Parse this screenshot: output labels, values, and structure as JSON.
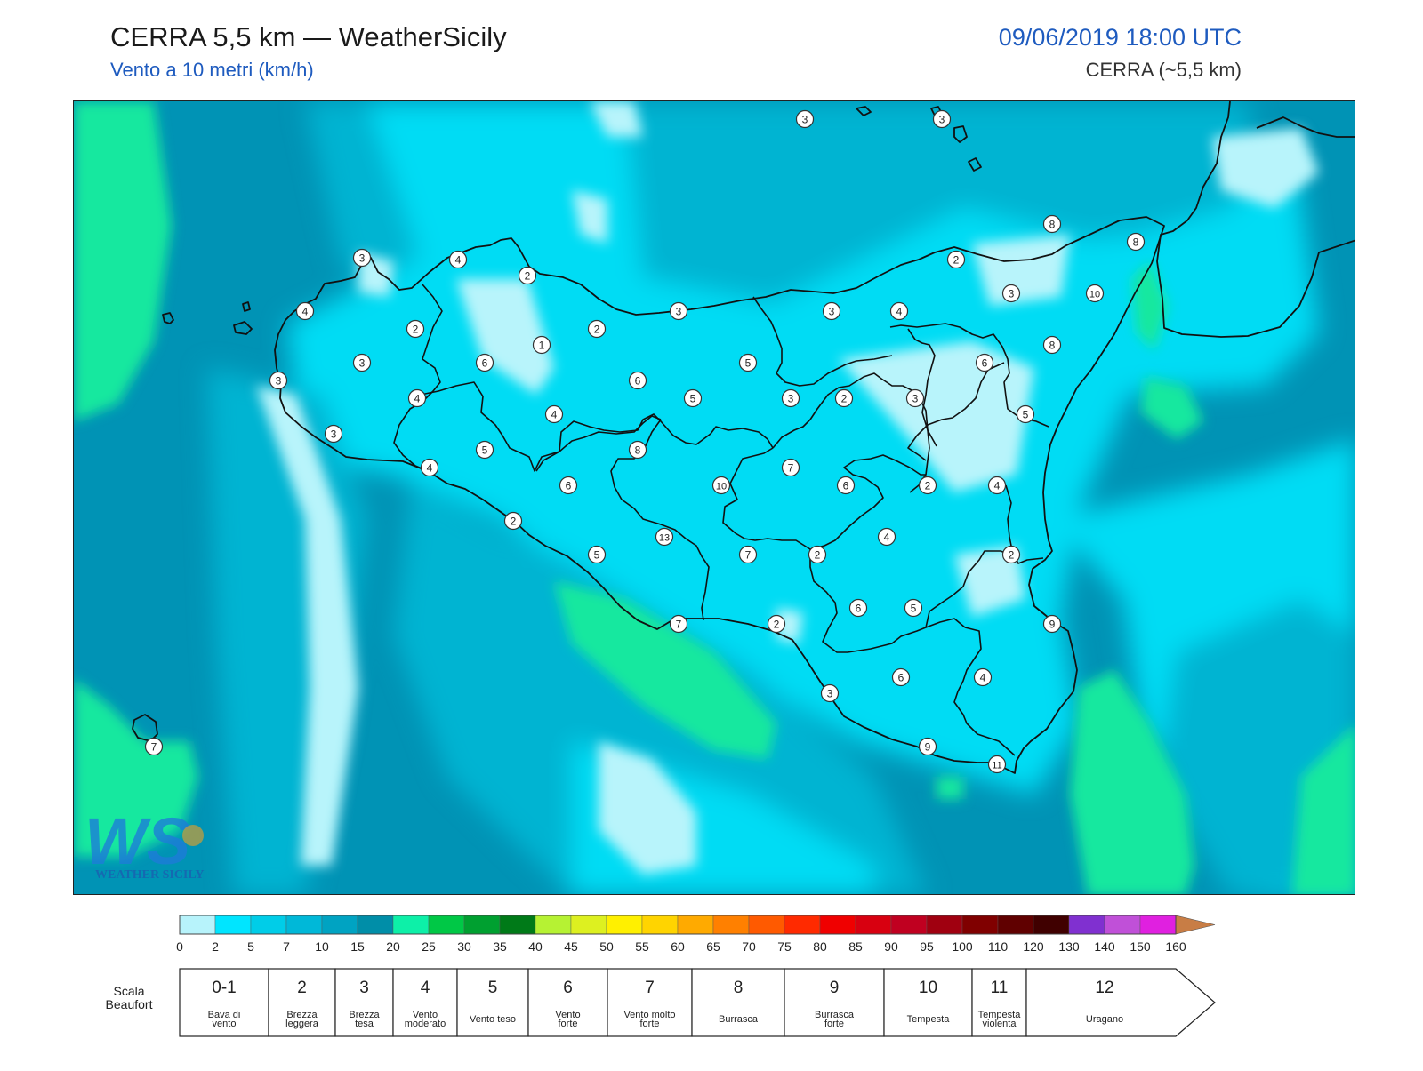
{
  "header": {
    "title": "CERRA 5,5 km — WeatherSicily",
    "subtitle": "Vento a 10 metri (km/h)",
    "datetime": "09/06/2019 18:00 UTC",
    "model": "CERRA (~5,5 km)"
  },
  "logo": {
    "text": "WEATHER SICILY",
    "letters": "WS"
  },
  "map": {
    "colors": {
      "sea_dark": "#0093b5",
      "mid": "#00b4d2",
      "bright": "#00dcf4",
      "pale": "#b8f4fb",
      "green": "#16e89f",
      "coast": "#111111"
    },
    "stations": [
      {
        "id": "s01",
        "value": "3"
      },
      {
        "id": "s02",
        "value": "3"
      },
      {
        "id": "s03",
        "value": "8"
      },
      {
        "id": "s04",
        "value": "8"
      },
      {
        "id": "s05",
        "value": "3"
      },
      {
        "id": "s06",
        "value": "4"
      },
      {
        "id": "s07",
        "value": "2"
      },
      {
        "id": "s08",
        "value": "2"
      },
      {
        "id": "s09",
        "value": "3"
      },
      {
        "id": "s10",
        "value": "10"
      },
      {
        "id": "s11",
        "value": "4"
      },
      {
        "id": "s12",
        "value": "3"
      },
      {
        "id": "s13",
        "value": "3"
      },
      {
        "id": "s14",
        "value": "1"
      },
      {
        "id": "s15",
        "value": "4"
      },
      {
        "id": "s16",
        "value": "2"
      },
      {
        "id": "s17",
        "value": "2"
      },
      {
        "id": "s18",
        "value": "8"
      },
      {
        "id": "s19",
        "value": "3"
      },
      {
        "id": "s20",
        "value": "6"
      },
      {
        "id": "s21",
        "value": "5"
      },
      {
        "id": "s22",
        "value": "6"
      },
      {
        "id": "s23",
        "value": "3"
      },
      {
        "id": "s24",
        "value": "4"
      },
      {
        "id": "s25",
        "value": "6"
      },
      {
        "id": "s26",
        "value": "5"
      },
      {
        "id": "s27",
        "value": "3"
      },
      {
        "id": "s28",
        "value": "2"
      },
      {
        "id": "s29",
        "value": "3"
      },
      {
        "id": "s30",
        "value": "5"
      },
      {
        "id": "s31",
        "value": "4"
      },
      {
        "id": "s32",
        "value": "3"
      },
      {
        "id": "s33",
        "value": "5"
      },
      {
        "id": "s34",
        "value": "8"
      },
      {
        "id": "s35",
        "value": "4"
      },
      {
        "id": "s36",
        "value": "7"
      },
      {
        "id": "s37",
        "value": "6"
      },
      {
        "id": "s38",
        "value": "10"
      },
      {
        "id": "s39",
        "value": "6"
      },
      {
        "id": "s40",
        "value": "2"
      },
      {
        "id": "s41",
        "value": "4"
      },
      {
        "id": "s42",
        "value": "2"
      },
      {
        "id": "s43",
        "value": "13"
      },
      {
        "id": "s44",
        "value": "4"
      },
      {
        "id": "s45",
        "value": "5"
      },
      {
        "id": "s46",
        "value": "7"
      },
      {
        "id": "s47",
        "value": "2"
      },
      {
        "id": "s48",
        "value": "2"
      },
      {
        "id": "s49",
        "value": "6"
      },
      {
        "id": "s50",
        "value": "5"
      },
      {
        "id": "s51",
        "value": "9"
      },
      {
        "id": "s52",
        "value": "7"
      },
      {
        "id": "s53",
        "value": "2"
      },
      {
        "id": "s54",
        "value": "3"
      },
      {
        "id": "s55",
        "value": "6"
      },
      {
        "id": "s56",
        "value": "4"
      },
      {
        "id": "s57",
        "value": "9"
      },
      {
        "id": "s58",
        "value": "11"
      },
      {
        "id": "s59",
        "value": "7"
      }
    ]
  },
  "colorbar": {
    "colors": [
      "#b7f3fb",
      "#00e5ff",
      "#00cde8",
      "#00b8d8",
      "#00a3c2",
      "#008ea8",
      "#0df0a8",
      "#00c846",
      "#00a030",
      "#007a18",
      "#b6f233",
      "#ddf020",
      "#fff000",
      "#ffd400",
      "#ffaa00",
      "#ff8000",
      "#ff5a00",
      "#ff2a00",
      "#f00000",
      "#d80010",
      "#c00020",
      "#a00010",
      "#800000",
      "#600000",
      "#400000",
      "#8030d0",
      "#c050d8",
      "#e020e0",
      "#ff20ff",
      "#909090",
      "#606060",
      "#101010",
      "#8b4a28",
      "#c87d45"
    ],
    "ticks": [
      "0",
      "2",
      "5",
      "7",
      "10",
      "15",
      "20",
      "25",
      "30",
      "35",
      "40",
      "45",
      "50",
      "55",
      "60",
      "65",
      "70",
      "75",
      "80",
      "85",
      "90",
      "95",
      "100",
      "110",
      "120",
      "130",
      "140",
      "150",
      "160"
    ]
  },
  "beaufort": {
    "label_line1": "Scala",
    "label_line2": "Beaufort",
    "items": [
      {
        "num": "0-1",
        "desc": [
          "Bava di",
          "vento"
        ]
      },
      {
        "num": "2",
        "desc": [
          "Brezza",
          "leggera"
        ]
      },
      {
        "num": "3",
        "desc": [
          "Brezza",
          "tesa"
        ]
      },
      {
        "num": "4",
        "desc": [
          "Vento",
          "moderato"
        ]
      },
      {
        "num": "5",
        "desc": [
          "Vento teso"
        ]
      },
      {
        "num": "6",
        "desc": [
          "Vento",
          "forte"
        ]
      },
      {
        "num": "7",
        "desc": [
          "Vento molto",
          "forte"
        ]
      },
      {
        "num": "8",
        "desc": [
          "Burrasca"
        ]
      },
      {
        "num": "9",
        "desc": [
          "Burrasca",
          "forte"
        ]
      },
      {
        "num": "10",
        "desc": [
          "Tempesta"
        ]
      },
      {
        "num": "11",
        "desc": [
          "Tempesta",
          "violenta"
        ]
      },
      {
        "num": "12",
        "desc": [
          "Uragano"
        ]
      }
    ]
  }
}
